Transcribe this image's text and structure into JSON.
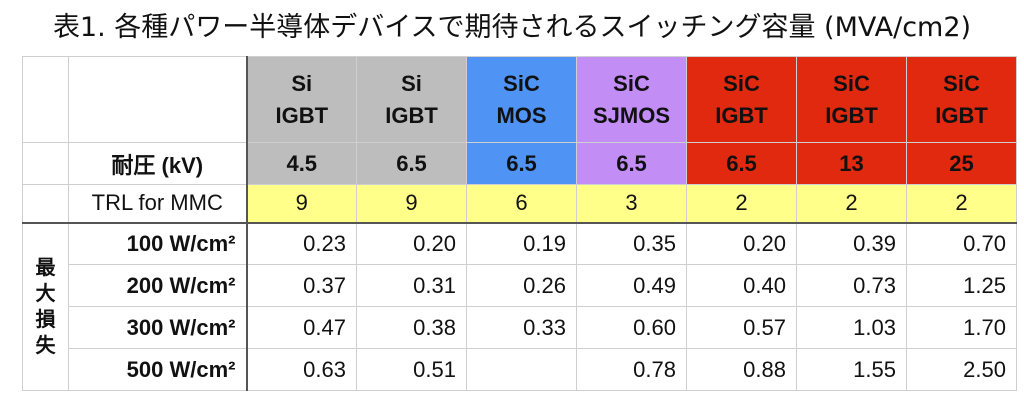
{
  "title": "表1. 各種パワー半導体デバイスで期待されるスイッチング容量 (MVA/cm2)",
  "table": {
    "devices": [
      {
        "line1": "Si",
        "line2": "IGBT",
        "color": "#bdbdbd"
      },
      {
        "line1": "Si",
        "line2": "IGBT",
        "color": "#bdbdbd"
      },
      {
        "line1": "SiC",
        "line2": "MOS",
        "color": "#4f93f5"
      },
      {
        "line1": "SiC",
        "line2": "SJMOS",
        "color": "#c28df5"
      },
      {
        "line1": "SiC",
        "line2": "IGBT",
        "color": "#e0290f"
      },
      {
        "line1": "SiC",
        "line2": "IGBT",
        "color": "#e0290f"
      },
      {
        "line1": "SiC",
        "line2": "IGBT",
        "color": "#e0290f"
      }
    ],
    "voltage_label": "耐圧 (kV)",
    "voltages": [
      "4.5",
      "6.5",
      "6.5",
      "6.5",
      "6.5",
      "13",
      "25"
    ],
    "trl_label": "TRL for MMC",
    "trl": [
      "9",
      "9",
      "6",
      "3",
      "2",
      "2",
      "2"
    ],
    "side_label": [
      "最",
      "大",
      "損",
      "失"
    ],
    "rows": [
      {
        "label": "100 W/cm²",
        "values": [
          "0.23",
          "0.20",
          "0.19",
          "0.35",
          "0.20",
          "0.39",
          "0.70"
        ]
      },
      {
        "label": "200 W/cm²",
        "values": [
          "0.37",
          "0.31",
          "0.26",
          "0.49",
          "0.40",
          "0.73",
          "1.25"
        ]
      },
      {
        "label": "300 W/cm²",
        "values": [
          "0.47",
          "0.38",
          "0.33",
          "0.60",
          "0.57",
          "1.03",
          "1.70"
        ]
      },
      {
        "label": "500 W/cm²",
        "values": [
          "0.63",
          "0.51",
          "",
          "0.78",
          "0.88",
          "1.55",
          "2.50"
        ]
      }
    ],
    "colors": {
      "trl": "#ffff8a",
      "border": "#cfcfcf"
    }
  }
}
